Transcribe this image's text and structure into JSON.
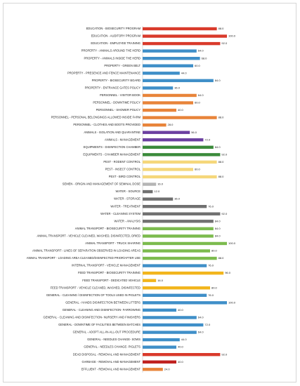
{
  "chart_data": {
    "type": "bar",
    "orientation": "horizontal",
    "title": "",
    "xlabel": "",
    "ylabel": "",
    "xlim": [
      0,
      100
    ],
    "grid": false,
    "legend": "none",
    "categories": [
      "EDUCATION - BIOSECURITY PROGRAM",
      "EDUCATION - AUDITORY PROGRAM",
      "EDUCATION - EMPLOYEE TRAINING",
      "PROPERTY - ANIMALS AROUND THE HERD",
      "PROPERTY - ANIMALS INSIDE THE HERD",
      "PROPERTY - GREEN BELT",
      "PROPERTY - PRESENCE AND FENCE MAINTENANCE",
      "PROPERTY - BIOSECURITY BOARD",
      "PROPERTY - ENTRANCE GATES POLICY",
      "PERSONNEL - VISITOR BOOK",
      "PERSONNEL - DOWNTIME POLICY",
      "PERSONNEL - SHOWER POLICY",
      "PERSONNEL - PERSONAL BELONGINGS ALLOWED INSIDE FARM",
      "PERSONNEL - CLOTHES AND BOOTS PROVIDED",
      "ANIMALS - ISOLATION AND QUARANTINE",
      "ANIMALS - MANAGEMENT",
      "EQUIPMENTS - DISINFECTION CHAMBER",
      "EQUIPMENTS - CHAMBER MANAGEMENT",
      "PEST - RODENT CONTROL",
      "PEST - INSECT CONTROL",
      "PEST - BIRD CONTROL",
      "SEMEN - ORIGIN AND MANAGEMENT OF SEMINAL DOSE",
      "WATER - SOURCE",
      "WATER - STORAGE",
      "WATER - TREATMENT",
      "WATER - CLEANING SYSTEM",
      "WATER - ANALYSIS",
      "ANIMAL TRANSPORT - BIOSECURITY TRAINING",
      "ANIMAL TRANSPORT - VEHICLE CLEANED, WASHED, DISINFECTED, DRIED",
      "ANIMAL TRANSPORT - TRUCK SHARING",
      "ANIMAL TRANSPORT - LINES OF SEPARATION OBSERVED IN LOADING AREAS",
      "ANIMAL TRANSPORT - LOADING AREA CLEANED/DISINFECTED PRIOR/AFTER USE",
      "INTERNAL TRANSPORT - VEHICLE MANAGEMENT",
      "FEED TRANSPORT - BIOSECURITY TRAINING",
      "FEED TRANSPORT - DEDICATED VEHICLE",
      "FEED TRANSPORT - VEHICLE CLEANED, WASHED, DISINFECTED",
      "GENERAL - CLEANING / DISINFECTION OF TOOLS USED IN PIGLETS",
      "GENERAL - HANDS DISINFECTION BETWEEN LITTERS",
      "GENERAL - CLEANING AND DISINFECTION- FARROWING",
      "GENERAL - CLEANING AND DISINFECTION- NURSERY AND FINISHERS",
      "GENERAL - DOWNTIME OF FACILITIES BETWEEN BATCHES",
      "GENERAL - ADOPT ALL-IN-ALL-OUT PROCEDURE",
      "GENERAL - NEEDLES CHANGE- SOWS",
      "GENERAL - NEEDLES CHANGE- PIGLETS",
      "DEAD DISPOSAL - REMOVAL AND MANAGEMENT",
      "GARBAGE - REMOVAL AND MANAGEMENT",
      "EFFLUENT - REMOVAL AND MANAGEMENT"
    ],
    "values": [
      88.0,
      100.0,
      92.0,
      64.0,
      68.0,
      60.0,
      44.0,
      84.0,
      36.0,
      64.0,
      60.0,
      40.0,
      88.0,
      28.0,
      56.0,
      72.0,
      84.0,
      92.0,
      88.0,
      60.0,
      88.0,
      16.0,
      12.0,
      36.0,
      76.0,
      92.0,
      84.0,
      84.0,
      84.0,
      100.0,
      80.0,
      88.0,
      76.0,
      96.0,
      16.0,
      80.0,
      76.0,
      100.0,
      40.0,
      64.0,
      72.0,
      64.0,
      44.0,
      40.0,
      92.0,
      40.0,
      24.0
    ],
    "colors": [
      "#d93a2b",
      "#d93a2b",
      "#d93a2b",
      "#3f8fc8",
      "#3f8fc8",
      "#3f8fc8",
      "#3f8fc8",
      "#3f8fc8",
      "#3f8fc8",
      "#e8843a",
      "#e8843a",
      "#e8843a",
      "#e8843a",
      "#e8843a",
      "#6b3fa0",
      "#6b3fa0",
      "#3a8a3a",
      "#3a8a3a",
      "#f5d77a",
      "#f5d77a",
      "#f5d77a",
      "#b5b5b5",
      "#707070",
      "#707070",
      "#707070",
      "#707070",
      "#707070",
      "#7cbb4e",
      "#7cbb4e",
      "#7cbb4e",
      "#7cbb4e",
      "#7cbb4e",
      "#3f8fc8",
      "#f2b51c",
      "#f2b51c",
      "#f2b51c",
      "#3f8fc8",
      "#3f8fc8",
      "#3f8fc8",
      "#3f8fc8",
      "#3f8fc8",
      "#3f8fc8",
      "#3f8fc8",
      "#3f8fc8",
      "#d93a2b",
      "#c0201e",
      "#e8843a"
    ]
  }
}
